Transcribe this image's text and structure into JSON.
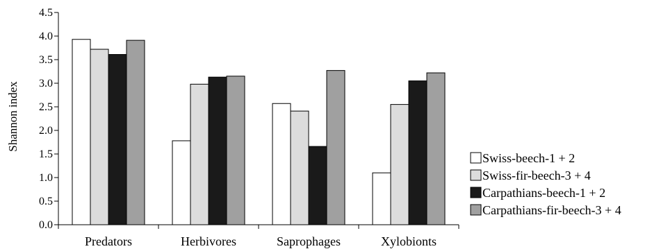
{
  "chart_data": {
    "type": "bar",
    "title": "",
    "xlabel": "",
    "ylabel": "Shannon index",
    "ylim": [
      0,
      4.5
    ],
    "yticks": [
      "0.0",
      "0.5",
      "1.0",
      "1.5",
      "2.0",
      "2.5",
      "3.0",
      "3.5",
      "4.0",
      "4.5"
    ],
    "categories": [
      "Predators",
      "Herbivores",
      "Saprophages",
      "Xylobionts"
    ],
    "grid": false,
    "legend_position": "right",
    "series": [
      {
        "name": "Swiss-beech-1 + 2",
        "color": "#ffffff",
        "values": [
          3.93,
          1.78,
          2.57,
          1.1
        ]
      },
      {
        "name": "Swiss-fir-beech-3 + 4",
        "color": "#dcdcdc",
        "values": [
          3.72,
          2.98,
          2.41,
          2.55
        ]
      },
      {
        "name": "Carpathians-beech-1 + 2",
        "color": "#1a1a1a",
        "values": [
          3.61,
          3.13,
          1.66,
          3.05
        ]
      },
      {
        "name": "Carpathians-fir-beech-3 + 4",
        "color": "#a0a0a0",
        "values": [
          3.91,
          3.15,
          3.27,
          3.22
        ]
      }
    ]
  }
}
